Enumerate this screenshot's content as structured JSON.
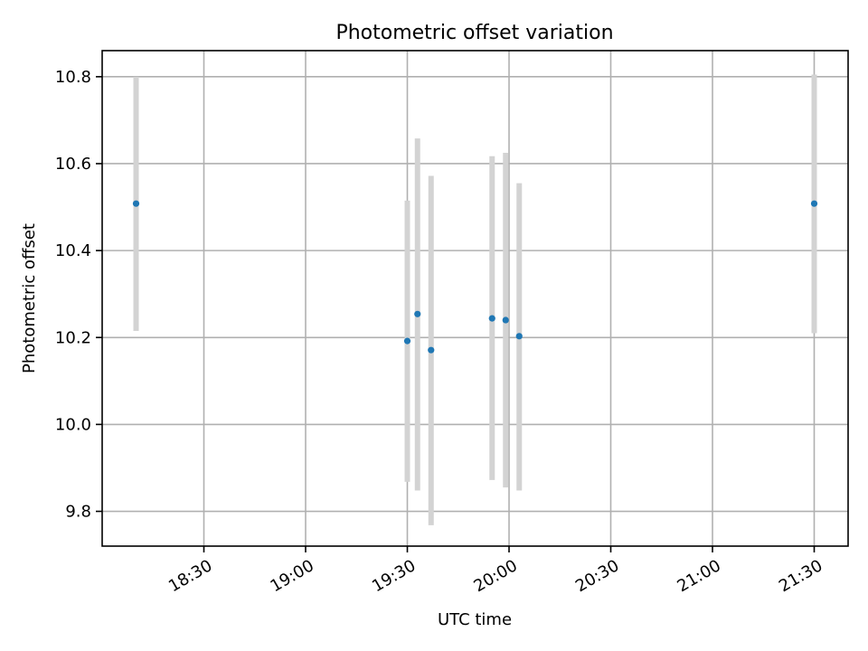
{
  "chart_data": {
    "type": "scatter",
    "title": "Photometric offset variation",
    "xlabel": "UTC time",
    "ylabel": "Photometric offset",
    "x_type": "time",
    "xlim": [
      "18:00",
      "21:40"
    ],
    "ylim": [
      9.72,
      10.86
    ],
    "x_ticks": [
      "18:30",
      "19:00",
      "19:30",
      "20:00",
      "20:30",
      "21:00",
      "21:30"
    ],
    "y_ticks": [
      9.8,
      10.0,
      10.2,
      10.4,
      10.6,
      10.8
    ],
    "y_tick_labels": [
      "9.8",
      "10.0",
      "10.2",
      "10.4",
      "10.6",
      "10.8"
    ],
    "grid": true,
    "colors": {
      "point": "#1f77b4",
      "errorbar": "#d3d3d3"
    },
    "points": [
      {
        "x": "18:10",
        "y": 10.508,
        "ylow": 10.215,
        "yhigh": 10.8
      },
      {
        "x": "19:30",
        "y": 10.192,
        "ylow": 9.868,
        "yhigh": 10.515
      },
      {
        "x": "19:33",
        "y": 10.254,
        "ylow": 9.848,
        "yhigh": 10.658
      },
      {
        "x": "19:37",
        "y": 10.171,
        "ylow": 9.768,
        "yhigh": 10.572
      },
      {
        "x": "19:55",
        "y": 10.244,
        "ylow": 9.872,
        "yhigh": 10.617
      },
      {
        "x": "19:59",
        "y": 10.24,
        "ylow": 9.855,
        "yhigh": 10.625
      },
      {
        "x": "20:03",
        "y": 10.203,
        "ylow": 9.848,
        "yhigh": 10.555
      },
      {
        "x": "21:30",
        "y": 10.508,
        "ylow": 10.21,
        "yhigh": 10.805
      }
    ]
  }
}
